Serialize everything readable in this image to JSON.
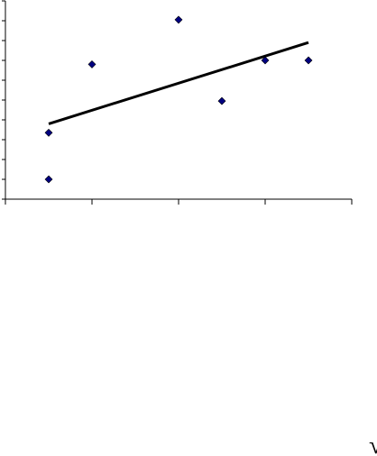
{
  "chart_data": {
    "type": "scatter",
    "x": [
      0.5,
      0.5,
      1,
      2,
      2.5,
      3,
      3.5
    ],
    "series": [
      {
        "color": "#000080",
        "values": [
          1,
          3.35,
          6.8,
          9.05,
          4.95,
          7,
          7
        ]
      }
    ],
    "trendline": {
      "x": [
        0.5,
        3.5
      ],
      "values": [
        3.8,
        7.9
      ],
      "color": "#000000"
    },
    "xlim": [
      0,
      4
    ],
    "xticks": [
      0,
      1,
      2,
      3,
      4
    ],
    "ylim": [
      0,
      10
    ],
    "yticks": [
      0,
      1,
      2,
      3,
      4,
      5,
      6,
      7,
      8,
      9,
      10
    ],
    "annotation": "√"
  }
}
